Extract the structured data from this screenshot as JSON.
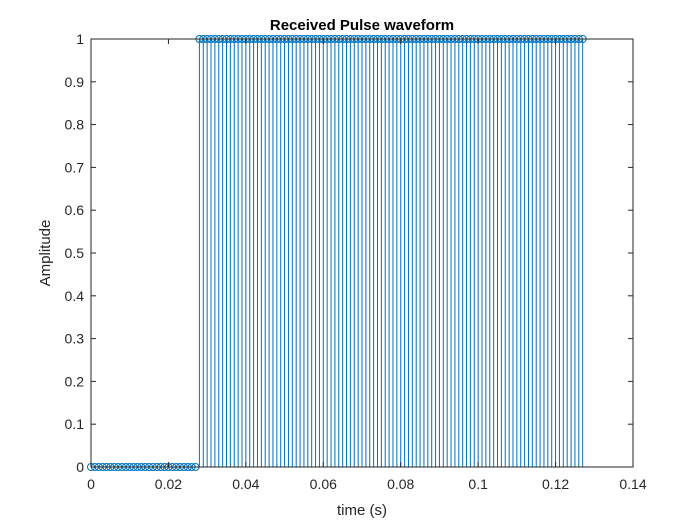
{
  "chart_data": {
    "type": "stem",
    "title": "Received Pulse waveform",
    "xlabel": "time (s)",
    "ylabel": "Amplitude",
    "xlim": [
      0,
      0.14
    ],
    "ylim": [
      0,
      1
    ],
    "xticks": [
      "0",
      "0.02",
      "0.04",
      "0.06",
      "0.08",
      "0.1",
      "0.12",
      "0.14"
    ],
    "yticks": [
      "0",
      "0.1",
      "0.2",
      "0.3",
      "0.4",
      "0.5",
      "0.6",
      "0.7",
      "0.8",
      "0.9",
      "1"
    ],
    "grid": false,
    "series": [
      {
        "color": "#0072BD",
        "marker": "open-circle",
        "sample_interval": 0.001,
        "x_start": 0,
        "x_end": 0.127,
        "values": [
          0,
          0,
          0,
          0,
          0,
          0,
          0,
          0,
          0,
          0,
          0,
          0,
          0,
          0,
          0,
          0,
          0,
          0,
          0,
          0,
          0,
          0,
          0,
          0,
          0,
          0,
          0,
          0,
          1,
          1,
          1,
          1,
          1,
          1,
          1,
          1,
          1,
          1,
          1,
          1,
          1,
          1,
          1,
          1,
          1,
          1,
          1,
          1,
          1,
          1,
          1,
          1,
          1,
          1,
          1,
          1,
          1,
          1,
          1,
          1,
          1,
          1,
          1,
          1,
          1,
          1,
          1,
          1,
          1,
          1,
          1,
          1,
          1,
          1,
          1,
          1,
          1,
          1,
          1,
          1,
          1,
          1,
          1,
          1,
          1,
          1,
          1,
          1,
          1,
          1,
          1,
          1,
          1,
          1,
          1,
          1,
          1,
          1,
          1,
          1,
          1,
          1,
          1,
          1,
          1,
          1,
          1,
          1,
          1,
          1,
          1,
          1,
          1,
          1,
          1,
          1,
          1,
          1,
          1,
          1,
          1,
          1,
          1,
          1,
          1,
          1,
          1,
          1
        ]
      }
    ]
  }
}
